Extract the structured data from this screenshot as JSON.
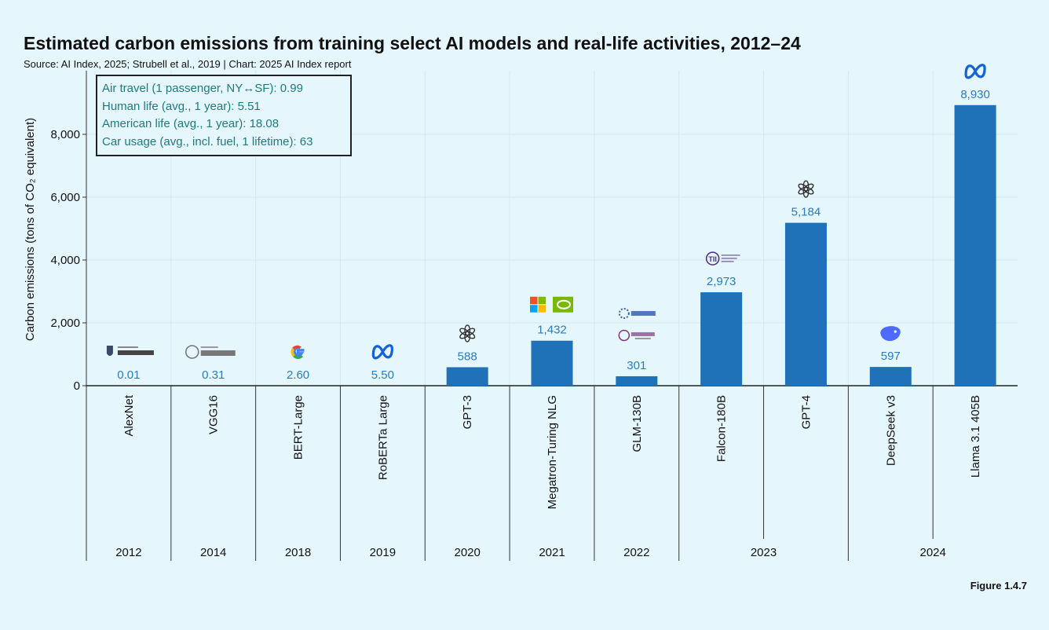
{
  "title": "Estimated carbon emissions from training select AI models and real-life activities, 2012–24",
  "subtitle": "Source: AI Index, 2025; Strubell et al., 2019 | Chart: 2025 AI Index report",
  "figure_label": "Figure 1.4.7",
  "reference_box": [
    "Air travel (1 passenger, NY↔SF): 0.99",
    "Human life (avg., 1 year): 5.51",
    "American life (avg., 1 year): 18.08",
    "Car usage (avg., incl. fuel, 1 lifetime): 63"
  ],
  "colors": {
    "bar": "#1f72b8",
    "value_label": "#2b7bc0",
    "background": "#e6f6fd",
    "grid": "#d6e7ef"
  },
  "chart_data": {
    "type": "bar",
    "title": "Estimated carbon emissions from training select AI models and real-life activities, 2012–24",
    "ylabel": "Carbon emissions (tons of CO₂ equivalent)",
    "ylim": [
      0,
      9000
    ],
    "yticks": [
      0,
      2000,
      4000,
      6000,
      8000
    ],
    "ytick_labels": [
      "0",
      "2,000",
      "4,000",
      "6,000",
      "8,000"
    ],
    "grid": true,
    "categories": [
      "AlexNet",
      "VGG16",
      "BERT-Large",
      "RoBERTa Large",
      "GPT-3",
      "Megatron-Turing NLG",
      "GLM-130B",
      "Falcon-180B",
      "GPT-4",
      "DeepSeek v3",
      "Llama 3.1 405B"
    ],
    "values": [
      0.01,
      0.31,
      2.6,
      5.5,
      588,
      1432,
      301,
      2973,
      5184,
      597,
      8930
    ],
    "value_labels": [
      "0.01",
      "0.31",
      "2.60",
      "5.50",
      "588",
      "1,432",
      "301",
      "2,973",
      "5,184",
      "597",
      "8,930"
    ],
    "years": [
      {
        "label": "2012",
        "span": 1
      },
      {
        "label": "2014",
        "span": 1
      },
      {
        "label": "2018",
        "span": 1
      },
      {
        "label": "2019",
        "span": 1
      },
      {
        "label": "2020",
        "span": 1
      },
      {
        "label": "2021",
        "span": 1
      },
      {
        "label": "2022",
        "span": 1
      },
      {
        "label": "2023",
        "span": 2
      },
      {
        "label": "2024",
        "span": 2
      }
    ],
    "logos": [
      [
        "toronto-logo"
      ],
      [
        "oxford-logo"
      ],
      [
        "google-logo"
      ],
      [
        "meta-logo"
      ],
      [
        "openai-logo"
      ],
      [
        "microsoft-logo",
        "nvidia-logo"
      ],
      [
        "zhipu-logo",
        "tsinghua-logo"
      ],
      [
        "tii-logo"
      ],
      [
        "openai-logo"
      ],
      [
        "deepseek-logo"
      ],
      [
        "meta-logo"
      ]
    ]
  }
}
